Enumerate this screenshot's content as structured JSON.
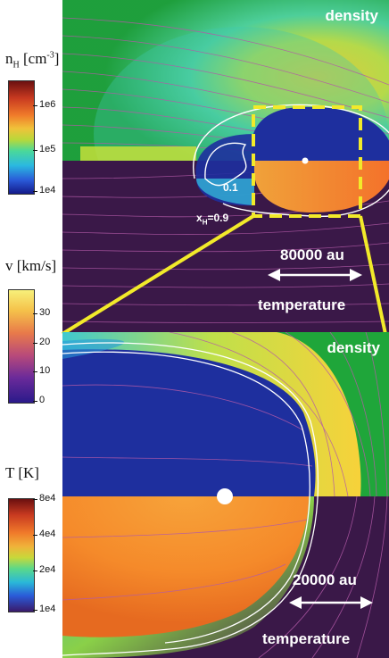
{
  "top_panel": {
    "label_density": "density",
    "label_temperature": "temperature",
    "scale_label": "80000 au",
    "contour_labels": [
      "0.1",
      "x",
      "H",
      "=0.9"
    ]
  },
  "bottom_panel": {
    "label_density": "density",
    "label_temperature": "temperature",
    "scale_label": "20000 au"
  },
  "colorbars": [
    {
      "title": "n",
      "title_sub": "H",
      "title_unit": "[cm",
      "title_sup": "-3",
      "title_end": "]",
      "ticks": [
        "1e6",
        "1e5",
        "1e4"
      ],
      "levels": [
        0.76,
        0.42,
        0.0
      ]
    },
    {
      "title": "v [km/s]",
      "ticks": [
        "30",
        "20",
        "10",
        "0"
      ],
      "levels": [
        0.78,
        0.52,
        0.26,
        0.0
      ]
    },
    {
      "title": "T [K]",
      "ticks": [
        "8e4",
        "4e4",
        "2e4",
        "1e4"
      ],
      "levels": [
        1.0,
        0.52,
        0.26,
        0.0
      ]
    }
  ],
  "colors": {
    "background_green": "#1fa63a",
    "cavity_blue": "#1e2f9e",
    "hot_orange": "#f58a2a",
    "cold_purple": "#3a1848",
    "zoom_box": "#f2ea2a"
  }
}
